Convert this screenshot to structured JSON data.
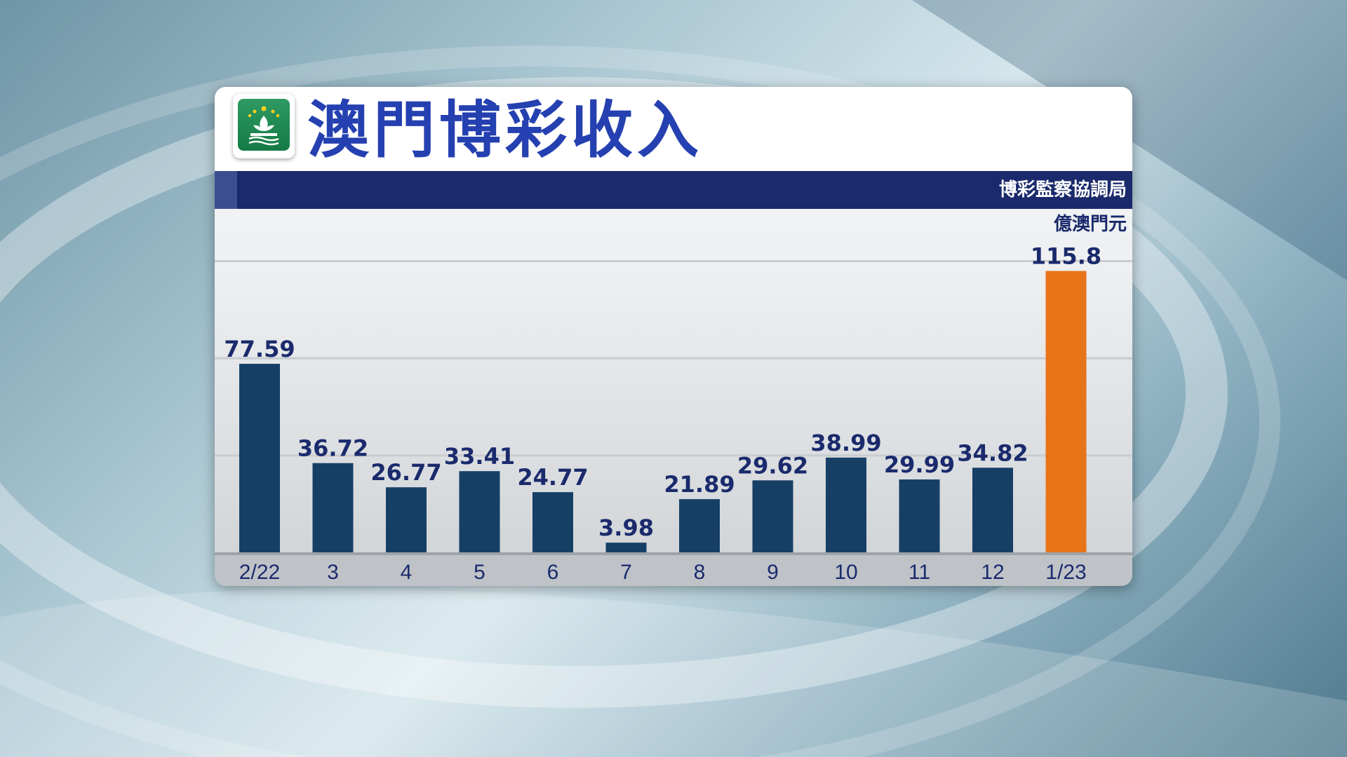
{
  "title": "澳門博彩收入",
  "source": "博彩監察協調局",
  "unit": "億澳門元",
  "colors": {
    "bar": "#163f66",
    "highlight": "#e8741a",
    "title": "#2540b0",
    "band": "#1a2a6c"
  },
  "icons": {
    "emblem": "macau-emblem-icon"
  },
  "chart_data": {
    "type": "bar",
    "title": "澳門博彩收入",
    "ylabel": "億澳門元",
    "categories": [
      "2/22",
      "3",
      "4",
      "5",
      "6",
      "7",
      "8",
      "9",
      "10",
      "11",
      "12",
      "1/23"
    ],
    "values": [
      77.59,
      36.72,
      26.77,
      33.41,
      24.77,
      3.98,
      21.89,
      29.62,
      38.99,
      29.99,
      34.82,
      115.8
    ],
    "value_labels": [
      "77.59",
      "36.72",
      "26.77",
      "33.41",
      "24.77",
      "3.98",
      "21.89",
      "29.62",
      "38.99",
      "29.99",
      "34.82",
      "115.8"
    ],
    "highlight_index": 11,
    "ylim": [
      0,
      120
    ],
    "grid": true
  }
}
